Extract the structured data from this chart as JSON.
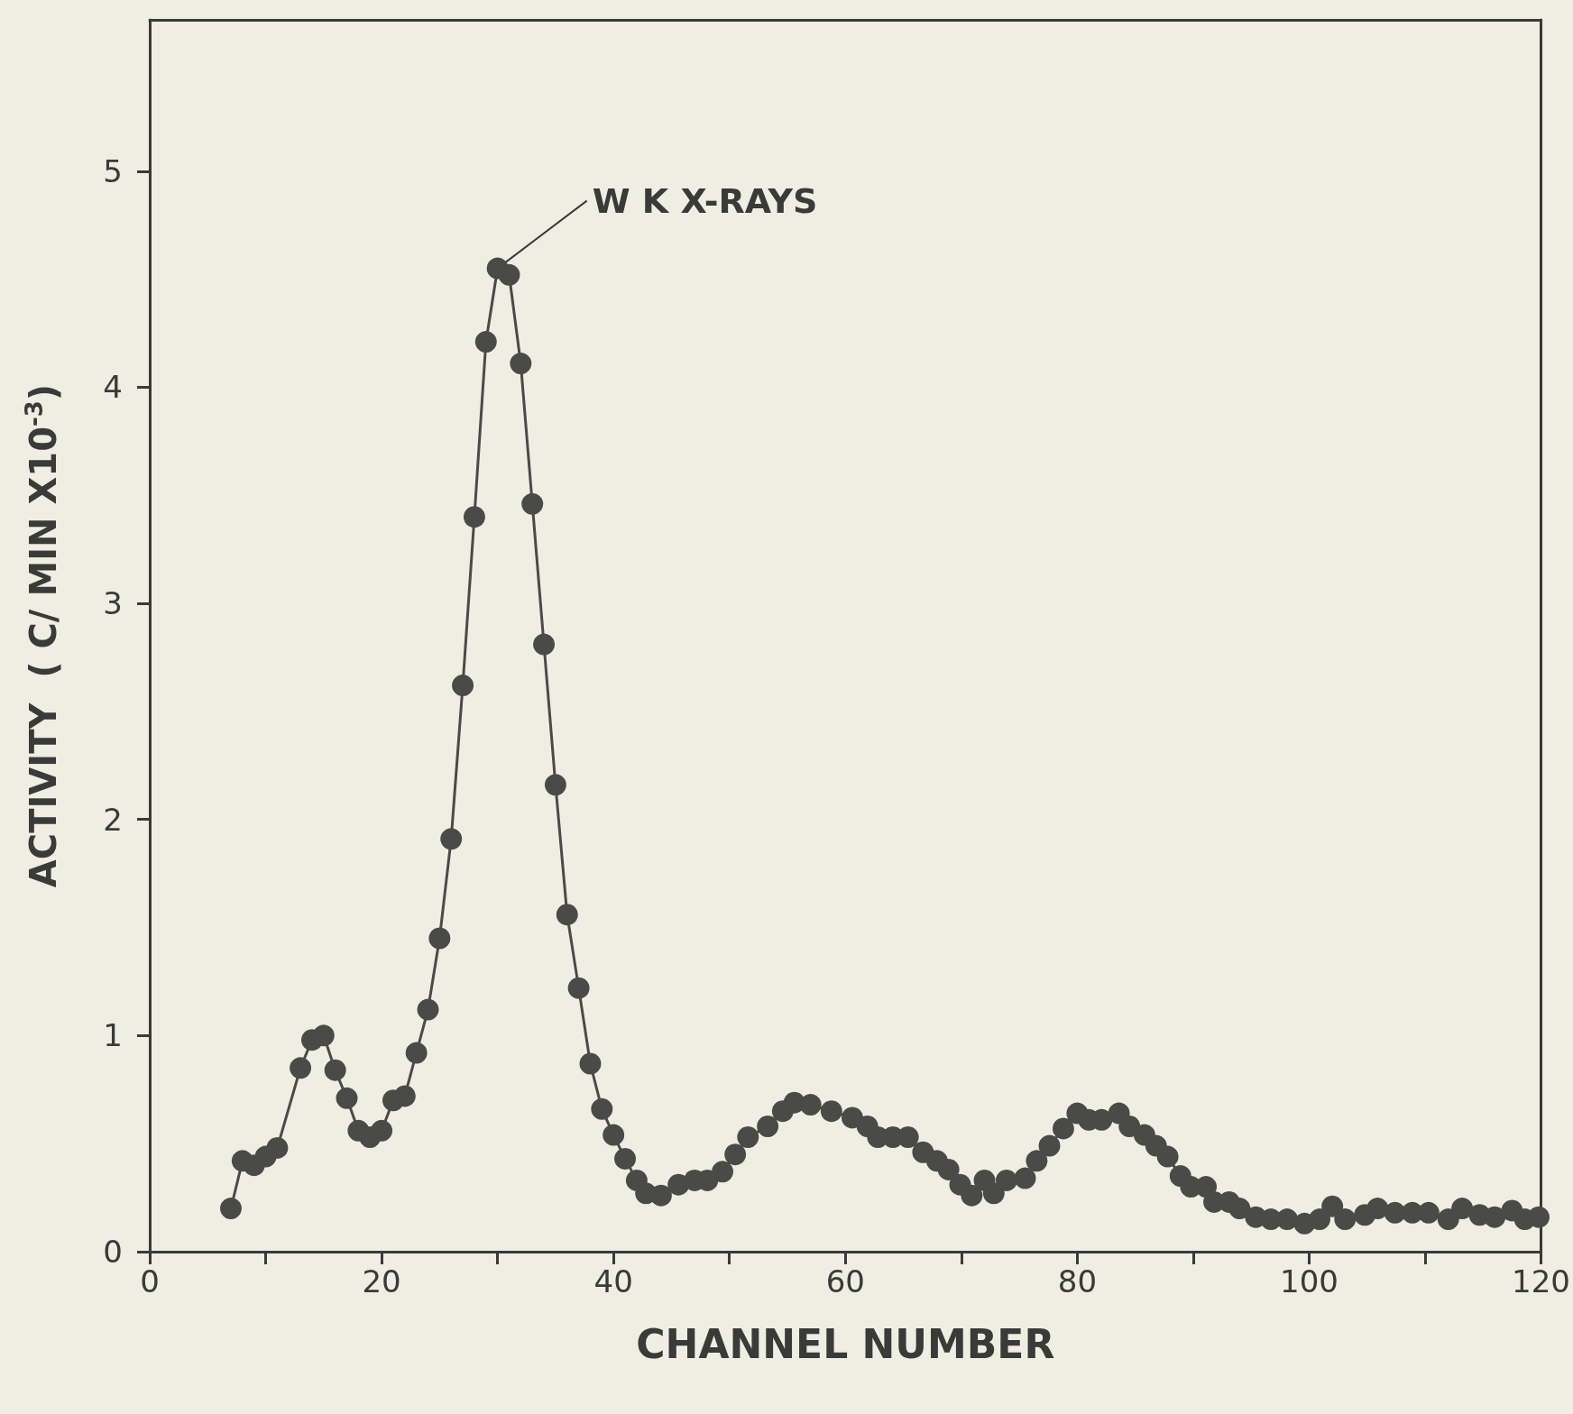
{
  "chart_data": {
    "type": "line",
    "xlabel": "CHANNEL NUMBER",
    "ylabel": "ACTIVITY  ( C/ MIN X10$^{-3}$)",
    "annotations": [
      {
        "text": "W K X-RAYS",
        "x": 30,
        "y": 4.55
      }
    ],
    "series": [
      {
        "color": "#4a4a48",
        "x": [
          7,
          8,
          9,
          10,
          11,
          13,
          14,
          15,
          16,
          17,
          18,
          19,
          20,
          21,
          22,
          23,
          24,
          25,
          26,
          27,
          28,
          29,
          30,
          31,
          32,
          33,
          34,
          35,
          36,
          37,
          38,
          39,
          40,
          41,
          42,
          42.8,
          44.1,
          45.6,
          47,
          48.1,
          49.4,
          50.5,
          51.6,
          53.3,
          54.6,
          55.6,
          57,
          58.8,
          60.6,
          61.9,
          62.8,
          64.1,
          65.4,
          66.7,
          67.9,
          68.9,
          69.9,
          70.9,
          72,
          72.8,
          73.9,
          75.5,
          76.5,
          77.6,
          78.8,
          80,
          81,
          82.1,
          83.6,
          84.5,
          85.8,
          86.8,
          87.8,
          88.9,
          89.8,
          91.1,
          91.8,
          93.1,
          94,
          95.4,
          96.7,
          98.1,
          99.6,
          100.9,
          102,
          103.1,
          104.8,
          105.9,
          107.4,
          108.9,
          110.3,
          112,
          113.2,
          114.7,
          116,
          117.5,
          118.6,
          119.8
        ],
        "values": [
          0.2,
          0.42,
          0.4,
          0.44,
          0.48,
          0.85,
          0.98,
          1.0,
          0.84,
          0.71,
          0.56,
          0.53,
          0.56,
          0.7,
          0.72,
          0.92,
          1.12,
          1.45,
          1.91,
          2.62,
          3.4,
          4.21,
          4.55,
          4.52,
          4.11,
          3.46,
          2.81,
          2.16,
          1.56,
          1.22,
          0.87,
          0.66,
          0.54,
          0.43,
          0.33,
          0.27,
          0.26,
          0.31,
          0.33,
          0.33,
          0.37,
          0.45,
          0.53,
          0.58,
          0.65,
          0.69,
          0.68,
          0.65,
          0.62,
          0.58,
          0.53,
          0.53,
          0.53,
          0.46,
          0.42,
          0.38,
          0.31,
          0.26,
          0.33,
          0.27,
          0.33,
          0.34,
          0.42,
          0.49,
          0.57,
          0.64,
          0.61,
          0.61,
          0.64,
          0.58,
          0.54,
          0.49,
          0.44,
          0.35,
          0.3,
          0.3,
          0.23,
          0.23,
          0.2,
          0.16,
          0.15,
          0.15,
          0.13,
          0.15,
          0.21,
          0.15,
          0.17,
          0.2,
          0.18,
          0.18,
          0.18,
          0.15,
          0.2,
          0.17,
          0.16,
          0.19,
          0.15,
          0.16
        ]
      }
    ],
    "xlim": [
      0,
      120
    ],
    "xticks": [
      0,
      {
        "value": 10,
        "label": null
      },
      20,
      {
        "value": 30,
        "label": null
      },
      40,
      {
        "value": 50,
        "label": null
      },
      60,
      {
        "value": 70,
        "label": null
      },
      80,
      {
        "value": 90,
        "label": null
      },
      100,
      {
        "value": 110,
        "label": null
      },
      120
    ],
    "ylim": [
      0,
      5.7
    ],
    "yticks": [
      0,
      1,
      2,
      3,
      4,
      5
    ],
    "marker": "circle",
    "line_style": "solid"
  }
}
